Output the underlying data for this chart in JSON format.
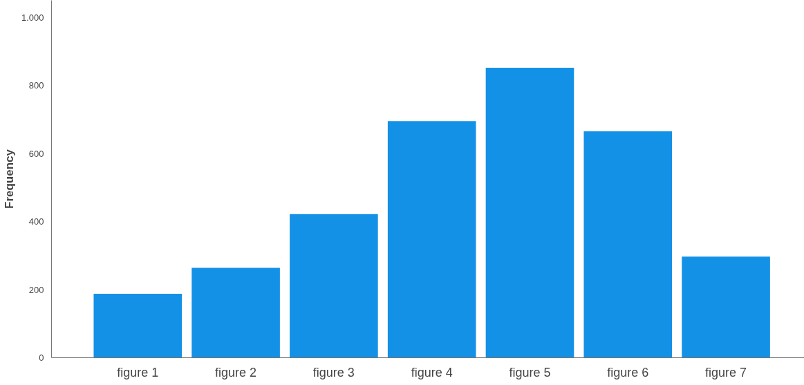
{
  "chart_data": {
    "type": "bar",
    "ylabel": "Frequency",
    "categories": [
      "figure 1",
      "figure 2",
      "figure 3",
      "figure 4",
      "figure 5",
      "figure 6",
      "figure 7"
    ],
    "values": [
      188,
      264,
      422,
      695,
      852,
      665,
      297
    ],
    "color": "#1391e6",
    "ylim": [
      0,
      1050
    ],
    "yticks": [
      0,
      200,
      400,
      600,
      800,
      {
        "value": 1000,
        "label": "1.000"
      }
    ],
    "grid": false
  }
}
